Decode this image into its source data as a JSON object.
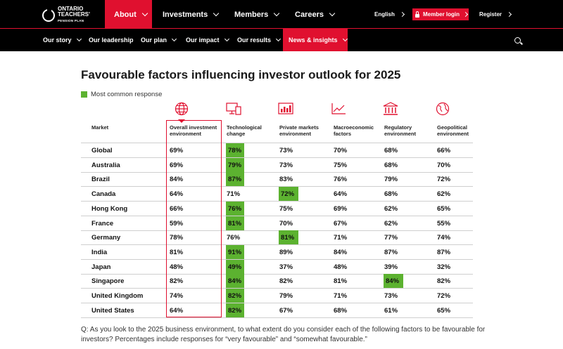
{
  "brand": {
    "line1": "ONTARIO",
    "line2": "TEACHERS'",
    "line3": "PENSION PLAN"
  },
  "top_nav": [
    {
      "label": "About",
      "active": true
    },
    {
      "label": "Investments",
      "active": false
    },
    {
      "label": "Members",
      "active": false
    },
    {
      "label": "Careers",
      "active": false
    }
  ],
  "utility": {
    "language": "English",
    "member_login": "Member login",
    "register": "Register"
  },
  "sub_nav": [
    {
      "label": "Our story",
      "has_menu": true
    },
    {
      "label": "Our leadership",
      "has_menu": false
    },
    {
      "label": "Our plan",
      "has_menu": true
    },
    {
      "label": "Our impact",
      "has_menu": true
    },
    {
      "label": "Our results",
      "has_menu": true
    },
    {
      "label": "News & insights",
      "has_menu": true,
      "active": true
    }
  ],
  "page": {
    "title": "Favourable factors influencing investor outlook for 2025",
    "legend_label": "Most common response",
    "footnote": "Q: As you look to the 2025 business environment, to what extent do you consider each of the following factors to be favourable for investors? Percentages include responses for “very favourable” and “somewhat favourable.”"
  },
  "colors": {
    "accent": "#e0102f",
    "highlight": "#5cb230",
    "nav_bg": "#000000"
  },
  "table": {
    "market_header": "Market",
    "columns": [
      {
        "label_1": "Overall investment",
        "label_2": "environment",
        "icon": "globe-icon"
      },
      {
        "label_1": "Technological",
        "label_2": "change",
        "icon": "devices-icon"
      },
      {
        "label_1": "Private markets",
        "label_2": "environment",
        "icon": "bar-chart-icon"
      },
      {
        "label_1": "Macroeconomic",
        "label_2": "factors",
        "icon": "line-chart-icon"
      },
      {
        "label_1": "Regulatory",
        "label_2": "environment",
        "icon": "institution-icon"
      },
      {
        "label_1": "Geopolitical",
        "label_2": "environment",
        "icon": "world-icon"
      }
    ],
    "rows": [
      {
        "market": "Global",
        "values": [
          "69%",
          "78%",
          "73%",
          "70%",
          "68%",
          "66%"
        ],
        "highlight": 1
      },
      {
        "market": "Australia",
        "values": [
          "69%",
          "79%",
          "73%",
          "75%",
          "68%",
          "70%"
        ],
        "highlight": 1
      },
      {
        "market": "Brazil",
        "values": [
          "84%",
          "87%",
          "83%",
          "76%",
          "79%",
          "72%"
        ],
        "highlight": 1
      },
      {
        "market": "Canada",
        "values": [
          "64%",
          "71%",
          "72%",
          "64%",
          "68%",
          "62%"
        ],
        "highlight": 2
      },
      {
        "market": "Hong Kong",
        "values": [
          "66%",
          "76%",
          "75%",
          "69%",
          "62%",
          "65%"
        ],
        "highlight": 1
      },
      {
        "market": "France",
        "values": [
          "59%",
          "81%",
          "70%",
          "67%",
          "62%",
          "55%"
        ],
        "highlight": 1
      },
      {
        "market": "Germany",
        "values": [
          "78%",
          "76%",
          "81%",
          "71%",
          "77%",
          "74%"
        ],
        "highlight": 2
      },
      {
        "market": "India",
        "values": [
          "81%",
          "91%",
          "89%",
          "84%",
          "87%",
          "87%"
        ],
        "highlight": 1
      },
      {
        "market": "Japan",
        "values": [
          "48%",
          "49%",
          "37%",
          "48%",
          "39%",
          "32%"
        ],
        "highlight": 1
      },
      {
        "market": "Singapore",
        "values": [
          "82%",
          "84%",
          "82%",
          "81%",
          "84%",
          "82%"
        ],
        "highlight": [
          1,
          4
        ]
      },
      {
        "market": "United Kingdom",
        "values": [
          "74%",
          "82%",
          "79%",
          "71%",
          "73%",
          "72%"
        ],
        "highlight": 1
      },
      {
        "market": "United States",
        "values": [
          "64%",
          "82%",
          "67%",
          "68%",
          "61%",
          "65%"
        ],
        "highlight": 1
      }
    ]
  }
}
